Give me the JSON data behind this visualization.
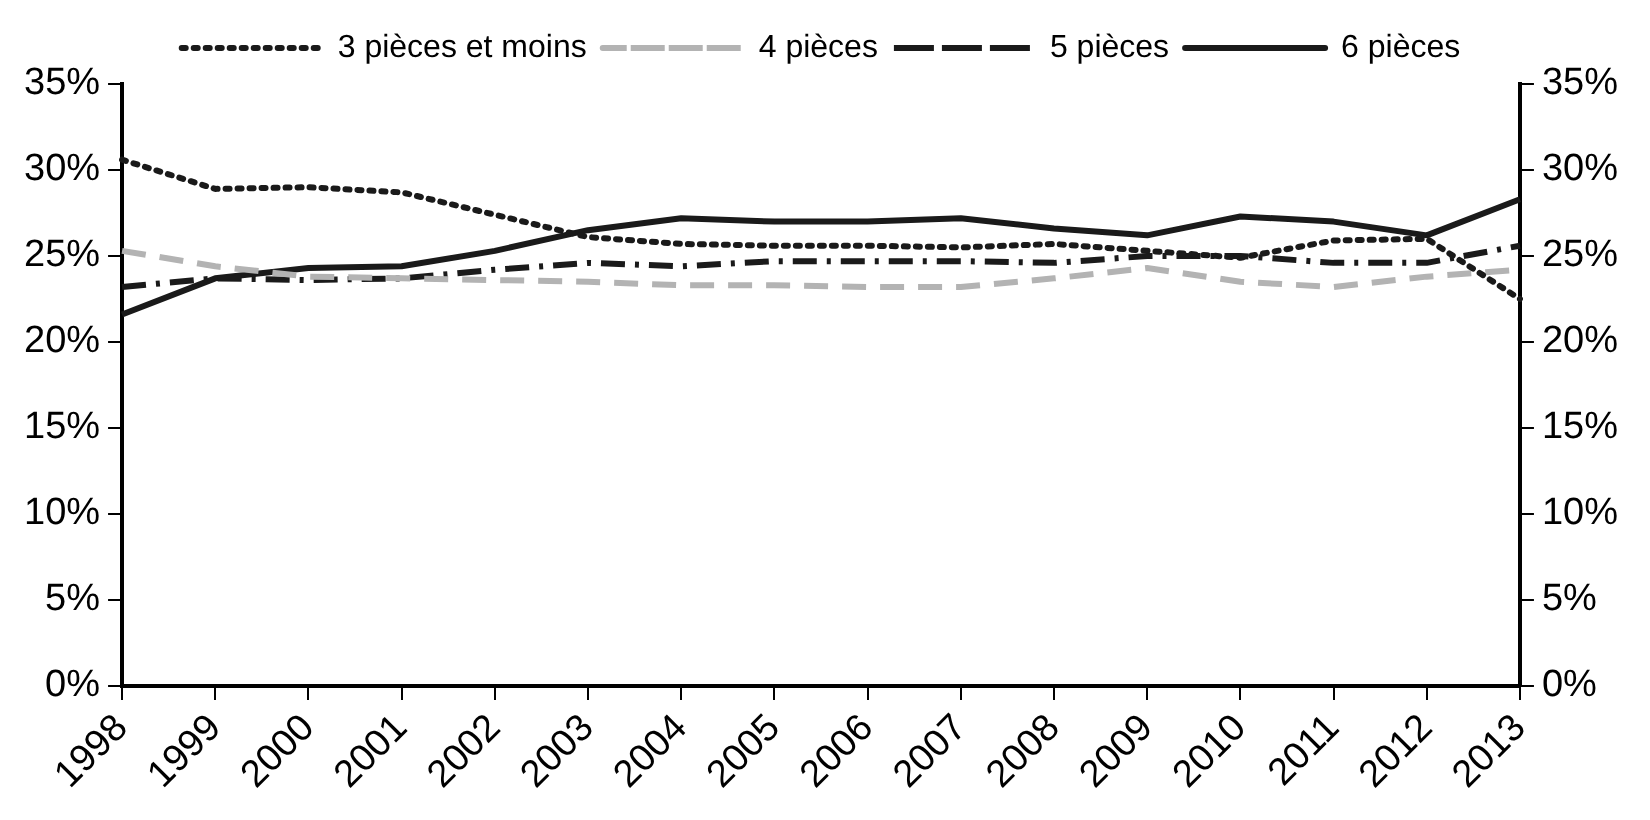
{
  "chart_data": {
    "type": "line",
    "categories": [
      "1998",
      "1999",
      "2000",
      "2001",
      "2002",
      "2003",
      "2004",
      "2005",
      "2006",
      "2007",
      "2008",
      "2009",
      "2010",
      "2011",
      "2012",
      "2013"
    ],
    "series": [
      {
        "name": "3 pièces et moins",
        "color": "#1a1a1a",
        "line_style": "dotted",
        "values": [
          30.6,
          28.9,
          29.0,
          28.7,
          27.4,
          26.1,
          25.7,
          25.6,
          25.6,
          25.5,
          25.7,
          25.3,
          24.9,
          25.9,
          26.0,
          22.5
        ]
      },
      {
        "name": "4 pièces",
        "color": "#b3b3b3",
        "line_style": "dashed",
        "values": [
          25.3,
          24.4,
          23.8,
          23.7,
          23.6,
          23.5,
          23.3,
          23.3,
          23.2,
          23.2,
          23.7,
          24.3,
          23.5,
          23.2,
          23.8,
          24.2
        ]
      },
      {
        "name": "5 pièces",
        "color": "#1a1a1a",
        "line_style": "dashdot",
        "values": [
          23.2,
          23.7,
          23.6,
          23.7,
          24.2,
          24.6,
          24.4,
          24.7,
          24.7,
          24.7,
          24.6,
          25.0,
          25.0,
          24.6,
          24.6,
          25.6
        ]
      },
      {
        "name": "6 pièces",
        "color": "#1a1a1a",
        "line_style": "solid",
        "values": [
          21.6,
          23.7,
          24.3,
          24.4,
          25.3,
          26.5,
          27.2,
          27.0,
          27.0,
          27.2,
          26.6,
          26.2,
          27.3,
          27.0,
          26.2,
          28.3
        ]
      }
    ],
    "ylim": [
      0,
      35
    ],
    "yticks": [
      {
        "value": 0,
        "label": "0%"
      },
      {
        "value": 5,
        "label": "5%"
      },
      {
        "value": 10,
        "label": "10%"
      },
      {
        "value": 15,
        "label": "15%"
      },
      {
        "value": 20,
        "label": "20%"
      },
      {
        "value": 25,
        "label": "25%"
      },
      {
        "value": 30,
        "label": "30%"
      },
      {
        "value": 35,
        "label": "35%"
      }
    ],
    "y2lim": [
      0,
      35
    ],
    "y2ticks": [
      {
        "value": 0,
        "label": "0%"
      },
      {
        "value": 5,
        "label": "5%"
      },
      {
        "value": 10,
        "label": "10%"
      },
      {
        "value": 15,
        "label": "15%"
      },
      {
        "value": 20,
        "label": "20%"
      },
      {
        "value": 25,
        "label": "25%"
      },
      {
        "value": 30,
        "label": "30%"
      },
      {
        "value": 35,
        "label": "35%"
      }
    ],
    "grid": false,
    "legend": "top",
    "marker": "none"
  }
}
